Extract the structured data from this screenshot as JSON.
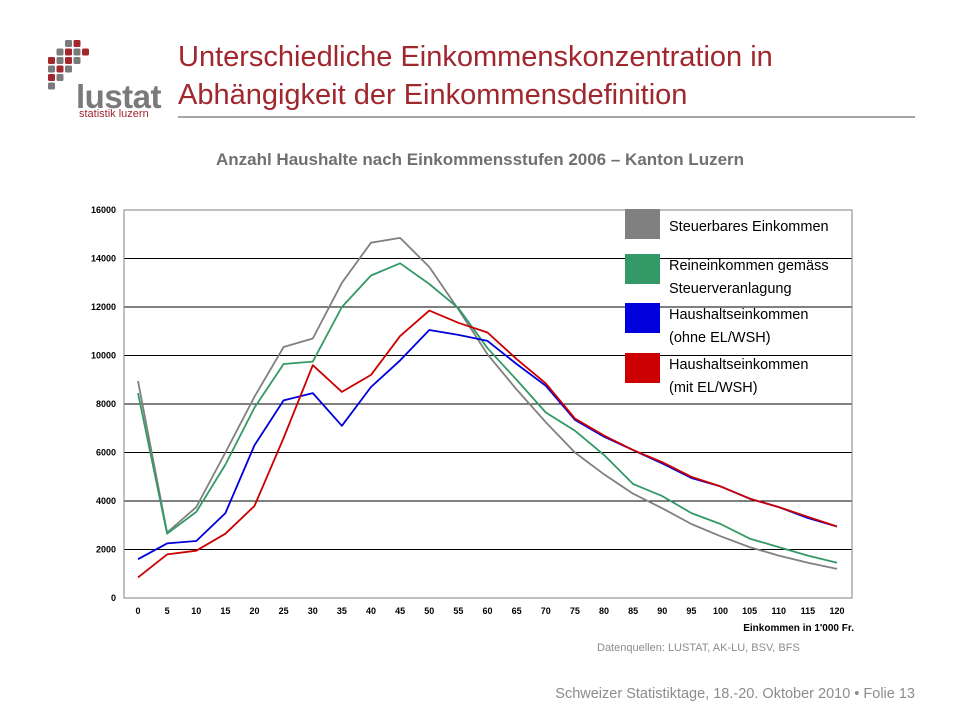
{
  "slide": {
    "title_line1": "Unterschiedliche Einkommenskonzentration in",
    "title_line2": "Abhängigkeit der Einkommensdefinition",
    "logo_word": "lustat",
    "logo_sub": "statistik luzern",
    "source": "Datenquellen: LUSTAT,  AK-LU, BSV, BFS",
    "footer": "Schweizer Statistiktage, 18.-20. Oktober 2010  •  Folie 13"
  },
  "colors": {
    "accent": "#a0272d",
    "logo_grey": "#7a7a7a"
  },
  "chart_data": {
    "type": "line",
    "title": "Anzahl Haushalte nach Einkommensstufen 2006 – Kanton Luzern",
    "xlabel": "Einkommen in 1'000 Fr.",
    "ylabel": "",
    "x": [
      0,
      5,
      10,
      15,
      20,
      25,
      30,
      35,
      40,
      45,
      50,
      55,
      60,
      65,
      70,
      75,
      80,
      85,
      90,
      95,
      100,
      105,
      110,
      115,
      120
    ],
    "x_tick_labels": [
      "0",
      "5",
      "10",
      "15",
      "20",
      "25",
      "30",
      "35",
      "40",
      "45",
      "50",
      "55",
      "60",
      "65",
      "70",
      "75",
      "80",
      "85",
      "90",
      "95",
      "100",
      "105",
      "110",
      "115",
      "120"
    ],
    "ylim": [
      0,
      16000
    ],
    "y_tick_labels": [
      "0",
      "2000",
      "4000",
      "6000",
      "8000",
      "10000",
      "12000",
      "14000",
      "16000"
    ],
    "grid": "horizontal",
    "legend_position": "top-right",
    "series": [
      {
        "name": "Steuerbares Einkommen",
        "legend_lines": [
          "Steuerbares Einkommen"
        ],
        "color": "#808080",
        "values": [
          8950,
          2700,
          3750,
          6000,
          8300,
          10350,
          10700,
          13000,
          14650,
          14850,
          13650,
          11900,
          10050,
          8600,
          7250,
          6000,
          5100,
          4300,
          3700,
          3050,
          2550,
          2100,
          1750,
          1450,
          1200
        ]
      },
      {
        "name": "Reineinkommen gemäss Steuerveranlagung",
        "legend_lines": [
          "Reineinkommen gemäss",
          "Steuerveranlagung"
        ],
        "color": "#339966",
        "values": [
          8450,
          2650,
          3550,
          5500,
          7850,
          9650,
          9750,
          12000,
          13300,
          13800,
          12950,
          11950,
          10300,
          9000,
          7650,
          6900,
          5900,
          4700,
          4200,
          3500,
          3050,
          2450,
          2100,
          1750,
          1450
        ]
      },
      {
        "name": "Haushaltseinkommen (ohne EL/WSH)",
        "legend_lines": [
          "Haushaltseinkommen",
          "(ohne EL/WSH)"
        ],
        "color": "#0000dd",
        "values": [
          1600,
          2250,
          2350,
          3500,
          6300,
          8150,
          8450,
          7100,
          8700,
          9800,
          11050,
          10850,
          10600,
          9650,
          8750,
          7350,
          6650,
          6100,
          5550,
          4950,
          4600,
          4100,
          3750,
          3300,
          2950
        ]
      },
      {
        "name": "Haushaltseinkommen (mit EL/WSH)",
        "legend_lines": [
          "Haushaltseinkommen",
          "(mit EL/WSH)"
        ],
        "color": "#cc0000",
        "values": [
          850,
          1800,
          1950,
          2650,
          3800,
          6600,
          9600,
          8500,
          9200,
          10800,
          11850,
          11350,
          10950,
          9850,
          8850,
          7400,
          6700,
          6100,
          5600,
          5000,
          4600,
          4100,
          3750,
          3350,
          2950
        ]
      }
    ]
  }
}
